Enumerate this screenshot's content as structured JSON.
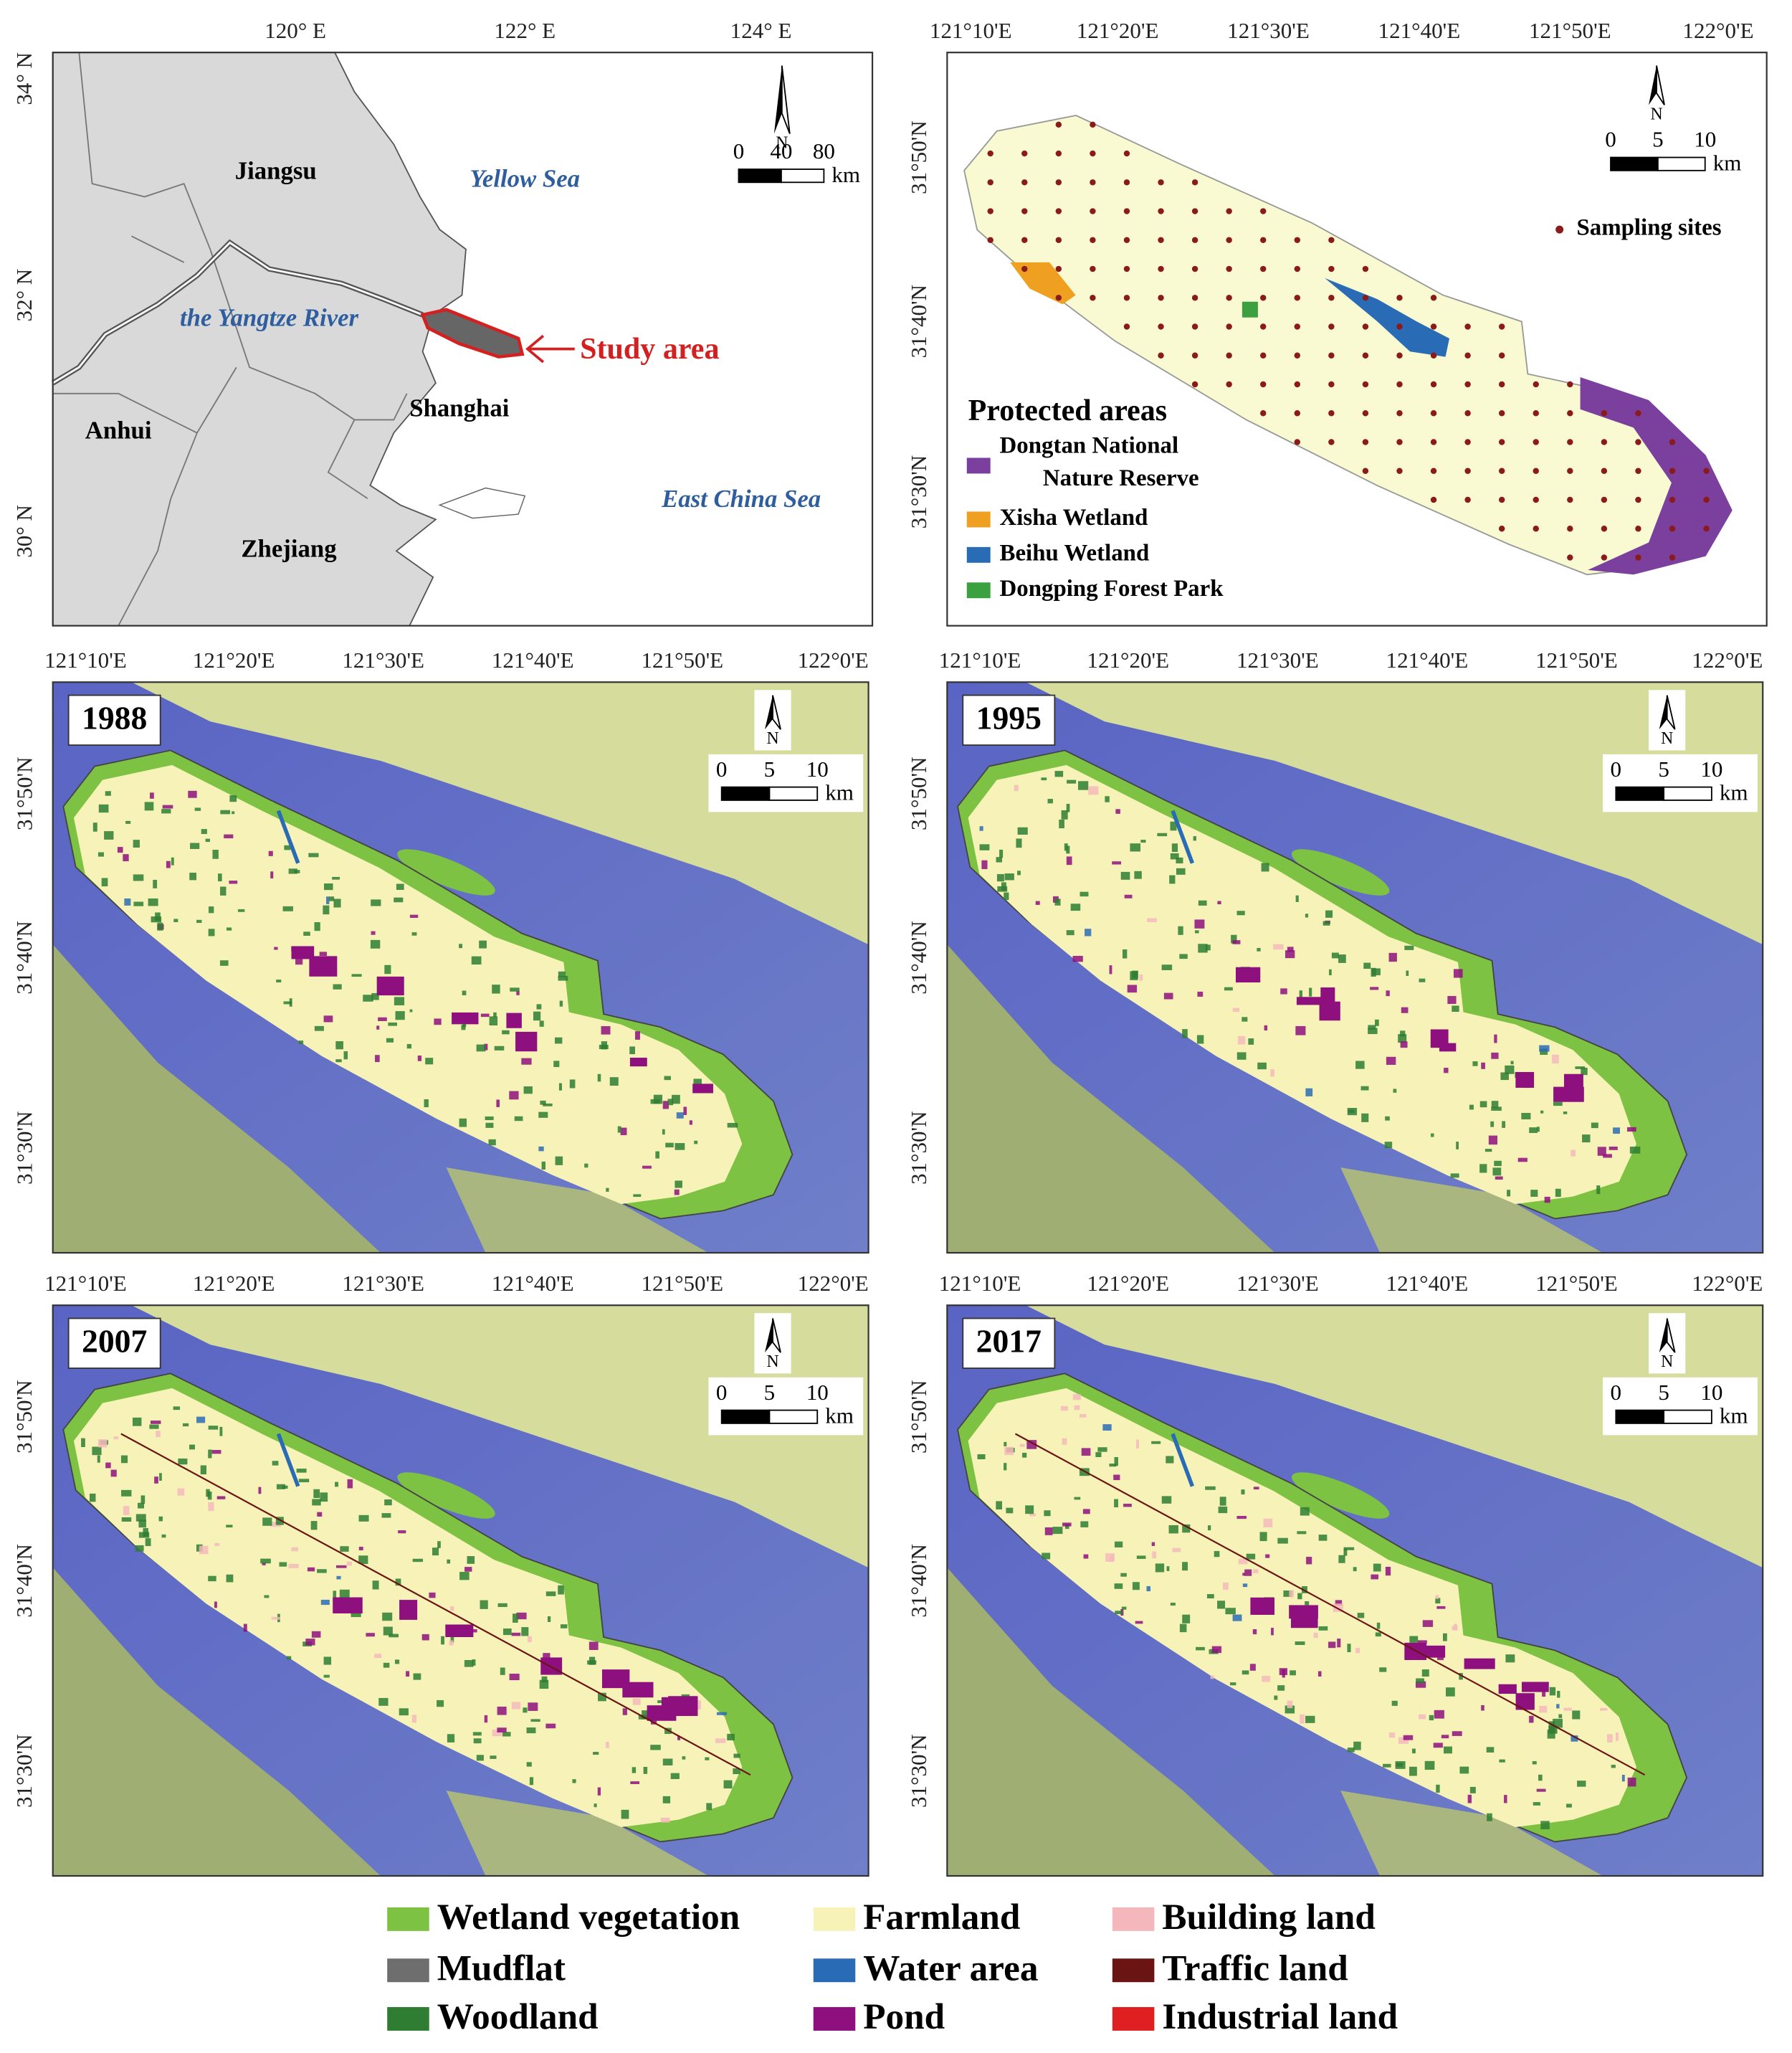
{
  "location_map": {
    "lon_labels": [
      "120° E",
      "122° E",
      "124° E"
    ],
    "lat_labels": [
      "34° N",
      "32° N",
      "30° N"
    ],
    "places": [
      "Jiangsu",
      "Anhui",
      "Shanghai",
      "Zhejiang"
    ],
    "waters": [
      "Yellow Sea",
      "the Yangtze River",
      "East China Sea"
    ],
    "study_area": "Study area",
    "north": "N",
    "scale": [
      "0",
      "40",
      "80"
    ],
    "scale_unit": "km"
  },
  "site_map": {
    "lon_labels": [
      "121°10'E",
      "121°20'E",
      "121°30'E",
      "121°40'E",
      "121°50'E",
      "122°0'E"
    ],
    "lat_labels": [
      "31°50'N",
      "31°40'N",
      "31°30'N"
    ],
    "north": "N",
    "scale": [
      "0",
      "5",
      "10"
    ],
    "scale_unit": "km",
    "sampling_label": "Sampling sites",
    "sampling_color": "#8b1a1a",
    "protected_title": "Protected areas",
    "protected_areas": [
      {
        "label": [
          "Dongtan National",
          "Nature Reserve"
        ],
        "color": "#7b3f9e"
      },
      {
        "label": [
          "Xisha Wetland"
        ],
        "color": "#f0a020"
      },
      {
        "label": [
          "Beihu Wetland"
        ],
        "color": "#2a6bb5"
      },
      {
        "label": [
          "Dongping Forest Park"
        ],
        "color": "#3aa040"
      }
    ]
  },
  "land_use_maps": {
    "lon_labels": [
      "121°10'E",
      "121°20'E",
      "121°30'E",
      "121°40'E",
      "121°50'E",
      "122°0'E"
    ],
    "lat_labels": [
      "31°50'N",
      "31°40'N",
      "31°30'N"
    ],
    "north": "N",
    "scale": [
      "0",
      "5",
      "10"
    ],
    "scale_unit": "km",
    "years": [
      "1988",
      "1995",
      "2007",
      "2017"
    ]
  },
  "legend": [
    {
      "label": "Wetland vegetation",
      "color": "#7dc242"
    },
    {
      "label": "Mudflat",
      "color": "#6e6e6e"
    },
    {
      "label": "Woodland",
      "color": "#2e7d32"
    },
    {
      "label": "Farmland",
      "color": "#f7f3b8"
    },
    {
      "label": "Water area",
      "color": "#2a6bb5"
    },
    {
      "label": "Pond",
      "color": "#8e0f7e"
    },
    {
      "label": "Building land",
      "color": "#f4b8bc"
    },
    {
      "label": "Traffic land",
      "color": "#6b1414"
    },
    {
      "label": "Industrial land",
      "color": "#e02020"
    }
  ]
}
